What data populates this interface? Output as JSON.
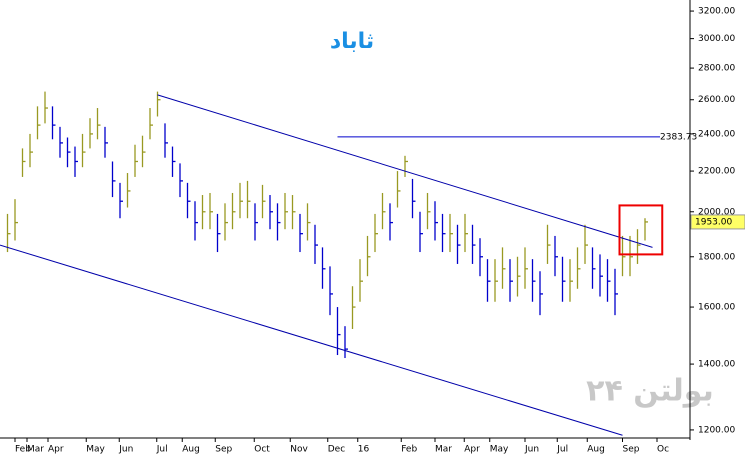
{
  "chart_data": {
    "type": "ohlc",
    "title": "ثاباد",
    "watermark": "بولتن ۲۴",
    "log_scale": true,
    "xlim": [
      0,
      92
    ],
    "ylim": [
      1172,
      3284
    ],
    "yticks": [
      {
        "value": 1200,
        "label": "1200.00"
      },
      {
        "value": 1400,
        "label": "1400.00"
      },
      {
        "value": 1600,
        "label": "1600.00"
      },
      {
        "value": 1800,
        "label": "1800.00"
      },
      {
        "value": 2000,
        "label": "2000.00"
      },
      {
        "value": 2200,
        "label": "2200.00"
      },
      {
        "value": 2400,
        "label": "2400.00"
      },
      {
        "value": 2600,
        "label": "2600.00"
      },
      {
        "value": 2800,
        "label": "2800.00"
      },
      {
        "value": 3000,
        "label": "3000.00"
      },
      {
        "value": 3200,
        "label": "3200.00"
      }
    ],
    "xticks": [
      {
        "value": 2,
        "label": "Feb"
      },
      {
        "value": 3.6,
        "label": "Mar"
      },
      {
        "value": 6.4,
        "label": "Apr"
      },
      {
        "value": 11.5,
        "label": "May"
      },
      {
        "value": 15.9,
        "label": "Jun"
      },
      {
        "value": 20.9,
        "label": "Jul"
      },
      {
        "value": 24.3,
        "label": "Aug"
      },
      {
        "value": 28.7,
        "label": "Sep"
      },
      {
        "value": 33.9,
        "label": "Oct"
      },
      {
        "value": 38.7,
        "label": "Nov"
      },
      {
        "value": 43.7,
        "label": "Dec"
      },
      {
        "value": 47.7,
        "label": "16"
      },
      {
        "value": 53.5,
        "label": "Feb"
      },
      {
        "value": 58,
        "label": "Mar"
      },
      {
        "value": 61.9,
        "label": "Apr"
      },
      {
        "value": 65.3,
        "label": "May"
      },
      {
        "value": 70,
        "label": "Jun"
      },
      {
        "value": 74.3,
        "label": "Jul"
      },
      {
        "value": 78.3,
        "label": "Aug"
      },
      {
        "value": 83,
        "label": "Sep"
      },
      {
        "value": 87.6,
        "label": "Oc"
      }
    ],
    "up_color": "#999922",
    "down_color": "#0000cc",
    "x": [
      1,
      2,
      3,
      4,
      5,
      6,
      7,
      8,
      9,
      10,
      11,
      12,
      13,
      14,
      15,
      16,
      17,
      18,
      19,
      20,
      21,
      22,
      23,
      24,
      25,
      26,
      27,
      28,
      29,
      30,
      31,
      32,
      33,
      34,
      35,
      36,
      37,
      38,
      39,
      40,
      41,
      42,
      43,
      44,
      45,
      46,
      47,
      48,
      49,
      50,
      51,
      52,
      53,
      54,
      55,
      56,
      57,
      58,
      59,
      60,
      61,
      62,
      63,
      64,
      65,
      66,
      67,
      68,
      69,
      70,
      71,
      72,
      73,
      74,
      75,
      76,
      77,
      78,
      79,
      80,
      81,
      82,
      83,
      84,
      85,
      86
    ],
    "high": [
      1990,
      2060,
      2320,
      2400,
      2560,
      2650,
      2560,
      2440,
      2380,
      2330,
      2400,
      2490,
      2550,
      2440,
      2250,
      2140,
      2190,
      2340,
      2390,
      2550,
      2650,
      2460,
      2330,
      2240,
      2140,
      2050,
      2080,
      2090,
      1990,
      2040,
      2090,
      2140,
      2150,
      2040,
      2130,
      2080,
      2040,
      2090,
      2080,
      1990,
      2040,
      1940,
      1840,
      1760,
      1600,
      1530,
      1680,
      1790,
      1890,
      1990,
      2090,
      2040,
      2200,
      2280,
      2160,
      2000,
      2090,
      2050,
      1990,
      1990,
      1940,
      1990,
      1940,
      1880,
      1790,
      1790,
      1840,
      1790,
      1800,
      1840,
      1790,
      1740,
      1940,
      1890,
      1800,
      1790,
      1840,
      1940,
      1840,
      1810,
      1790,
      1750,
      1890,
      1890,
      1920,
      1970
    ],
    "low": [
      1820,
      1870,
      2170,
      2220,
      2370,
      2460,
      2370,
      2270,
      2220,
      2170,
      2220,
      2320,
      2370,
      2270,
      2070,
      1970,
      2020,
      2170,
      2220,
      2370,
      2500,
      2270,
      2170,
      2070,
      1970,
      1870,
      1920,
      1920,
      1820,
      1870,
      1920,
      1970,
      1970,
      1870,
      1970,
      1920,
      1870,
      1920,
      1920,
      1820,
      1870,
      1770,
      1670,
      1570,
      1430,
      1420,
      1520,
      1620,
      1720,
      1820,
      1920,
      1870,
      2020,
      2170,
      1970,
      1820,
      1920,
      1870,
      1820,
      1820,
      1770,
      1820,
      1770,
      1720,
      1620,
      1620,
      1670,
      1620,
      1640,
      1670,
      1620,
      1570,
      1770,
      1720,
      1620,
      1620,
      1670,
      1770,
      1670,
      1640,
      1620,
      1570,
      1720,
      1720,
      1770,
      1870
    ],
    "close": [
      1900,
      1950,
      2250,
      2300,
      2450,
      2550,
      2450,
      2350,
      2300,
      2250,
      2300,
      2400,
      2450,
      2350,
      2150,
      2050,
      2100,
      2250,
      2300,
      2450,
      2600,
      2350,
      2250,
      2150,
      2050,
      1950,
      2000,
      2000,
      1900,
      1950,
      2000,
      2050,
      2050,
      1950,
      2050,
      2000,
      1950,
      2000,
      2000,
      1900,
      1950,
      1850,
      1750,
      1650,
      1500,
      1450,
      1600,
      1700,
      1800,
      1900,
      2000,
      1950,
      2100,
      2250,
      2050,
      1900,
      2000,
      1950,
      1900,
      1900,
      1850,
      1900,
      1850,
      1800,
      1700,
      1700,
      1750,
      1700,
      1720,
      1750,
      1700,
      1650,
      1850,
      1800,
      1700,
      1700,
      1750,
      1850,
      1750,
      1720,
      1700,
      1650,
      1800,
      1800,
      1850,
      1953
    ],
    "last_label": {
      "value": 1953,
      "label": "1953.00"
    },
    "trend_lines": [
      {
        "x": [
          21,
          87
        ],
        "y": [
          2630,
          1840
        ],
        "color": "#0000aa"
      },
      {
        "x": [
          0,
          83
        ],
        "y": [
          1850,
          1185
        ],
        "color": "#0000aa"
      }
    ],
    "level": {
      "x": [
        45,
        88
      ],
      "value": 2383.73,
      "label": "2383.73",
      "color": "#0000cc"
    },
    "highlight": {
      "x": [
        82.6,
        88.3
      ],
      "y": [
        1810,
        2030
      ],
      "color": "#ee0000"
    }
  }
}
